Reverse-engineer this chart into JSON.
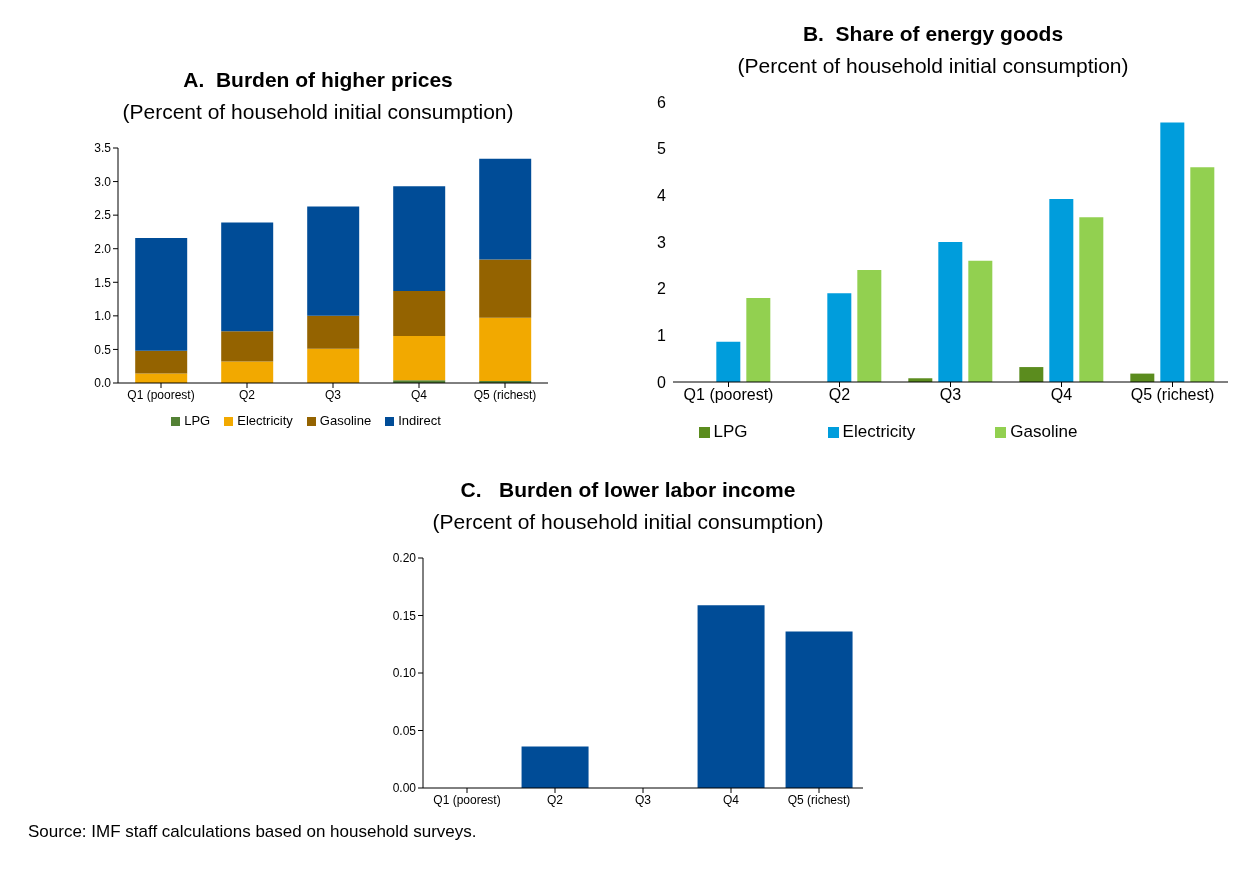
{
  "chart_data": [
    {
      "type": "bar",
      "title": "A.  Burden of higher prices",
      "subtitle": "(Percent of household initial consumption)",
      "stacked": true,
      "categories": [
        "Q1 (poorest)",
        "Q2",
        "Q3",
        "Q4",
        "Q5 (richest)"
      ],
      "series": [
        {
          "name": "LPG",
          "color": "#538135",
          "values": [
            0,
            0,
            0,
            0.04,
            0.03
          ]
        },
        {
          "name": "Electricity",
          "color": "#f2a900",
          "values": [
            0.14,
            0.32,
            0.51,
            0.66,
            0.94
          ]
        },
        {
          "name": "Gasoline",
          "color": "#946300",
          "values": [
            0.34,
            0.45,
            0.49,
            0.67,
            0.87
          ]
        },
        {
          "name": "Indirect",
          "color": "#004c97",
          "values": [
            1.68,
            1.62,
            1.63,
            1.56,
            1.5
          ]
        }
      ],
      "ylim": [
        0,
        3.5
      ],
      "yticks": [
        {
          "value": 0,
          "label": "0.0"
        },
        0.5,
        {
          "value": 1,
          "label": "1.0"
        },
        1.5,
        {
          "value": 2,
          "label": "2.0"
        },
        2.5,
        {
          "value": 3,
          "label": "3.0"
        },
        3.5
      ],
      "grid": false,
      "legend": "bottom"
    },
    {
      "type": "bar",
      "title": "B.  Share of energy goods",
      "subtitle": "(Percent of household initial consumption)",
      "categories": [
        "Q1 (poorest)",
        "Q2",
        "Q3",
        "Q4",
        "Q5 (richest)"
      ],
      "series": [
        {
          "name": "LPG",
          "color": "#5b8c1e",
          "values": [
            0,
            0,
            0.08,
            0.32,
            0.18
          ]
        },
        {
          "name": "Electricity",
          "color": "#009ddc",
          "values": [
            0.86,
            1.9,
            3.0,
            3.92,
            5.56
          ]
        },
        {
          "name": "Gasoline",
          "color": "#92d050",
          "values": [
            1.8,
            2.4,
            2.6,
            3.53,
            4.6
          ]
        }
      ],
      "ylim": [
        0,
        6
      ],
      "yticks": [
        0,
        1,
        2,
        3,
        4,
        5,
        6
      ],
      "grid": false,
      "legend": "bottom"
    },
    {
      "type": "bar",
      "title": "C.   Burden of lower labor income",
      "subtitle": "(Percent of household initial consumption)",
      "categories": [
        "Q1 (poorest)",
        "Q2",
        "Q3",
        "Q4",
        "Q5 (richest)"
      ],
      "series": [
        {
          "color": "#004c97",
          "values": [
            0,
            0.036,
            0,
            0.159,
            0.136
          ]
        }
      ],
      "ylim": [
        0,
        0.2
      ],
      "yticks": [
        {
          "value": 0,
          "label": "0.00"
        },
        {
          "value": 0.05,
          "label": "0.05"
        },
        {
          "value": 0.1,
          "label": "0.10"
        },
        {
          "value": 0.15,
          "label": "0.15"
        },
        {
          "value": 0.2,
          "label": "0.20"
        }
      ],
      "grid": false,
      "legend": false,
      "annotations": [
        "Source: IMF staff calculations based on household surveys."
      ]
    }
  ]
}
